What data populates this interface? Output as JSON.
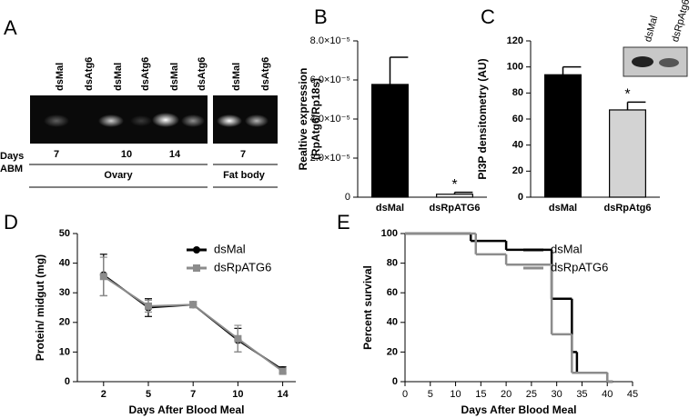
{
  "panel_labels": [
    "A",
    "B",
    "C",
    "D",
    "E"
  ],
  "gel": {
    "lanes": [
      "dsMal",
      "dsAtg6",
      "dsMal",
      "dsAtg6",
      "dsMal",
      "dsAtg6",
      "dsMal",
      "dsAtg6"
    ],
    "row_label": [
      "Days",
      "ABM"
    ],
    "days": [
      7,
      10,
      14,
      7
    ],
    "groups": [
      "Ovary",
      "Fat body"
    ]
  },
  "blot": {
    "lanes": [
      "dsMal",
      "dsRpAtg6"
    ]
  },
  "chart_data": [
    {
      "type": "bar",
      "ylabel": [
        "Realtive expression",
        "(RpAtg6/Rp18s)"
      ],
      "categories": [
        "dsMal",
        "dsRpATG6"
      ],
      "values": [
        5.77e-05,
        1.5e-06
      ],
      "errors": [
        1.39e-05,
        1e-06
      ],
      "colors": [
        "#000000",
        "#ffffff"
      ],
      "annotation": "*",
      "ylim": [
        0,
        8e-05
      ],
      "yticks": [
        0,
        {
          "value": 2e-05,
          "label": "2.0×10⁻⁵"
        },
        {
          "value": 4e-05,
          "label": "4.0×10⁻⁵"
        },
        {
          "value": 6e-05,
          "label": "6.0×10⁻⁵"
        },
        {
          "value": 8e-05,
          "label": "8.0×10⁻⁵"
        }
      ]
    },
    {
      "type": "bar",
      "ylabel": [
        "PI3P densitometry (AU)"
      ],
      "categories": [
        "dsMal",
        "dsRpAtg6"
      ],
      "values": [
        94,
        67
      ],
      "errors": [
        6,
        6
      ],
      "colors": [
        "#000000",
        "#d3d3d3"
      ],
      "annotation": "*",
      "ylim": [
        0,
        120
      ],
      "yticks": [
        0,
        20,
        40,
        60,
        80,
        100,
        120
      ]
    },
    {
      "type": "line",
      "xlabel": "Days After Blood Meal",
      "ylabel": [
        "Protein/ midgut  (mg)"
      ],
      "categories": [
        2,
        5,
        7,
        10,
        14
      ],
      "series": [
        {
          "name": "dsMal",
          "color": "#000000",
          "marker": "circle",
          "values": [
            36,
            25,
            26,
            14,
            4
          ],
          "errors": [
            7,
            3,
            1,
            4,
            1
          ]
        },
        {
          "name": "dsRpATG6",
          "color": "#8c8c8c",
          "marker": "square",
          "values": [
            35.5,
            25.5,
            26,
            14.5,
            3.5
          ],
          "errors": [
            6.5,
            2,
            0.5,
            4.5,
            1
          ]
        }
      ],
      "ylim": [
        0,
        50
      ],
      "yticks": [
        0,
        10,
        20,
        30,
        40,
        50
      ],
      "legend": "upper right"
    },
    {
      "type": "step",
      "xlabel": "Days After Blood Meal",
      "ylabel": [
        "Percent survival"
      ],
      "series": [
        {
          "name": "dsMal",
          "color": "#000000",
          "x": [
            0,
            13,
            20,
            29,
            33,
            34,
            40
          ],
          "values": [
            100,
            95,
            89,
            56,
            20,
            6,
            0
          ]
        },
        {
          "name": "dsRpATG6",
          "color": "#8c8c8c",
          "x": [
            0,
            14,
            20,
            29,
            33,
            40
          ],
          "values": [
            100,
            86,
            79,
            32,
            6,
            0
          ]
        }
      ],
      "xlim": [
        0,
        45
      ],
      "xticks": [
        0,
        5,
        10,
        15,
        20,
        25,
        30,
        35,
        40,
        45
      ],
      "ylim": [
        0,
        100
      ],
      "yticks": [
        0,
        20,
        40,
        60,
        80,
        100
      ],
      "legend": "upper right"
    }
  ]
}
